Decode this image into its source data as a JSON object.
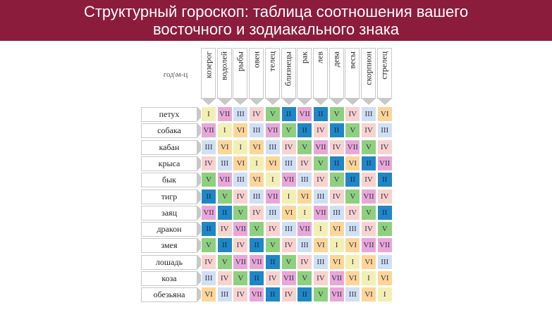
{
  "title": {
    "line1": "Структурный гороскоп: таблица соотношения вашего",
    "line2": "восточного и зодиакального знака"
  },
  "corner_label": "год\\м-ц",
  "columns": [
    "козерог",
    "водолей",
    "рыбы",
    "овен",
    "телец",
    "близнецы",
    "рак",
    "лев",
    "дева",
    "весы",
    "скорпион",
    "стрелец"
  ],
  "rows": [
    {
      "label": "петух",
      "cells": [
        "I",
        "VII",
        "III",
        "IV",
        "V",
        "II",
        "VII",
        "II",
        "V",
        "IV",
        "III",
        "VI"
      ]
    },
    {
      "label": "собака",
      "cells": [
        "VII",
        "I",
        "VI",
        "III",
        "VII",
        "V",
        "II",
        "IV",
        "II",
        "V",
        "IV",
        "III"
      ]
    },
    {
      "label": "кабан",
      "cells": [
        "III",
        "VI",
        "I",
        "VI",
        "III",
        "IV",
        "V",
        "VII",
        "IV",
        "VII",
        "V",
        "IV"
      ]
    },
    {
      "label": "крыса",
      "cells": [
        "IV",
        "III",
        "VI",
        "I",
        "VI",
        "III",
        "IV",
        "V",
        "II",
        "VI",
        "II",
        "VII"
      ]
    },
    {
      "label": "бык",
      "cells": [
        "V",
        "VII",
        "III",
        "VI",
        "I",
        "VII",
        "III",
        "IV",
        "V",
        "II",
        "IV",
        "II"
      ]
    },
    {
      "label": "тигр",
      "cells": [
        "II",
        "V",
        "IV",
        "III",
        "VII",
        "I",
        "VI",
        "III",
        "IV",
        "V",
        "VII",
        "IV"
      ]
    },
    {
      "label": "заяц",
      "cells": [
        "VII",
        "II",
        "V",
        "IV",
        "III",
        "VI",
        "I",
        "VII",
        "III",
        "IV",
        "V",
        "II"
      ]
    },
    {
      "label": "дракон",
      "cells": [
        "II",
        "IV",
        "VII",
        "V",
        "IV",
        "III",
        "VII",
        "I",
        "VI",
        "III",
        "IV",
        "V"
      ]
    },
    {
      "label": "змея",
      "cells": [
        "V",
        "II",
        "IV",
        "II",
        "V",
        "IV",
        "III",
        "VI",
        "I",
        "VI",
        "VII",
        "VII"
      ]
    },
    {
      "label": "лошадь",
      "cells": [
        "IV",
        "V",
        "VII",
        "VII",
        "II",
        "V",
        "IV",
        "III",
        "VI",
        "I",
        "VI",
        "III"
      ]
    },
    {
      "label": "коза",
      "cells": [
        "III",
        "IV",
        "V",
        "II",
        "IV",
        "VII",
        "V",
        "IV",
        "VII",
        "VI",
        "I",
        "VI"
      ]
    },
    {
      "label": "обезьяна",
      "cells": [
        "VI",
        "III",
        "IV",
        "VII",
        "II",
        "IV",
        "II",
        "V",
        "VII",
        "III",
        "VI",
        "I"
      ]
    }
  ],
  "colors": {
    "I": "#f3efb4",
    "II": "#1f87c6",
    "III": "#cfe0f2",
    "IV": "#f6d3cf",
    "V": "#8ed07f",
    "VI": "#fbd698",
    "VII": "#e7a8d8",
    "banner": "#8c1c3c"
  }
}
